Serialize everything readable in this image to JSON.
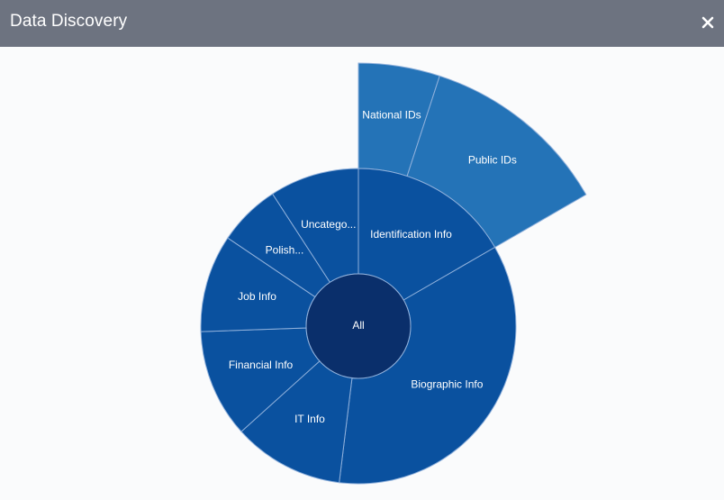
{
  "window": {
    "title": "Data Discovery",
    "close_icon": "close-icon"
  },
  "colors": {
    "titlebar": "#6d7380",
    "root": "#0a2f6b",
    "level1": "#0a519f",
    "level2": "#2473b7",
    "segment_border": "#8fb0db",
    "label": "#ffffff"
  },
  "chart_data": {
    "type": "sunburst",
    "root": {
      "label": "All"
    },
    "level1": [
      {
        "label": "Identification Info",
        "start_deg": 0,
        "end_deg": 60
      },
      {
        "label": "Biographic Info",
        "start_deg": 60,
        "end_deg": 187
      },
      {
        "label": "IT Info",
        "start_deg": 187,
        "end_deg": 228
      },
      {
        "label": "Financial Info",
        "start_deg": 228,
        "end_deg": 268
      },
      {
        "label": "Job Info",
        "start_deg": 268,
        "end_deg": 304
      },
      {
        "label": "Polish...",
        "start_deg": 304,
        "end_deg": 327
      },
      {
        "label": "Uncatego...",
        "start_deg": 327,
        "end_deg": 360
      }
    ],
    "level2": [
      {
        "label": "National IDs",
        "parent": "Identification Info",
        "start_deg": 0,
        "end_deg": 18
      },
      {
        "label": "Public IDs",
        "parent": "Identification Info",
        "start_deg": 18,
        "end_deg": 60
      }
    ]
  }
}
